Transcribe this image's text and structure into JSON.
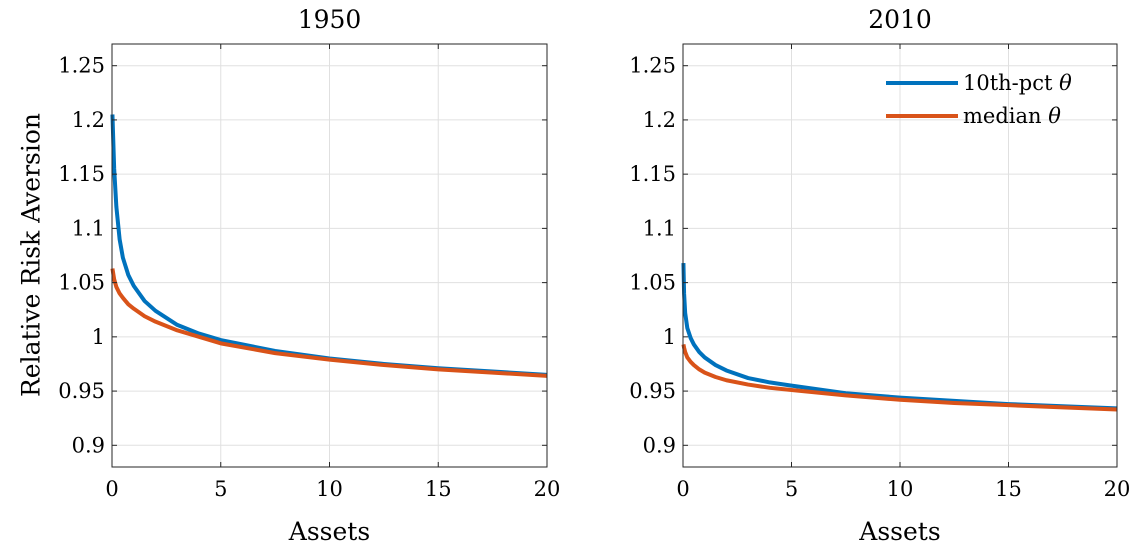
{
  "figure": {
    "ylabel": "Relative Risk Aversion"
  },
  "colors": {
    "series_1": "#0072BD",
    "series_2": "#D95319",
    "grid": "#e0e0e0",
    "axis": "#262626"
  },
  "legend": {
    "entries": [
      {
        "label": "10th-pct",
        "symbol": "θ"
      },
      {
        "label": "median",
        "symbol": "θ"
      }
    ]
  },
  "chart_data": [
    {
      "type": "line",
      "title": "1950",
      "xlabel": "Assets",
      "ylabel": "Relative Risk Aversion",
      "xlim": [
        0,
        20
      ],
      "ylim": [
        0.88,
        1.27
      ],
      "xticks": [
        0,
        5,
        10,
        15,
        20
      ],
      "yticks": [
        0.9,
        0.95,
        1,
        1.05,
        1.1,
        1.15,
        1.2,
        1.25
      ],
      "xtick_labels": [
        "0",
        "5",
        "10",
        "15",
        "20"
      ],
      "ytick_labels": [
        "0.9",
        "0.95",
        "1",
        "1.05",
        "1.1",
        "1.15",
        "1.2",
        "1.25"
      ],
      "grid": true,
      "legend": "none",
      "series": [
        {
          "name": "10th-pct θ",
          "x": [
            0.02,
            0.1,
            0.2,
            0.35,
            0.5,
            0.75,
            1,
            1.5,
            2,
            3,
            4,
            5,
            7.5,
            10,
            12.5,
            15,
            17.5,
            20
          ],
          "y": [
            1.205,
            1.155,
            1.12,
            1.09,
            1.073,
            1.057,
            1.047,
            1.033,
            1.024,
            1.011,
            1.003,
            0.997,
            0.987,
            0.98,
            0.975,
            0.971,
            0.968,
            0.965
          ]
        },
        {
          "name": "median θ",
          "x": [
            0.02,
            0.1,
            0.2,
            0.35,
            0.5,
            0.75,
            1,
            1.5,
            2,
            3,
            4,
            5,
            7.5,
            10,
            12.5,
            15,
            17.5,
            20
          ],
          "y": [
            1.063,
            1.053,
            1.046,
            1.04,
            1.036,
            1.03,
            1.026,
            1.019,
            1.014,
            1.006,
            1.0,
            0.994,
            0.985,
            0.979,
            0.974,
            0.97,
            0.967,
            0.964
          ]
        }
      ]
    },
    {
      "type": "line",
      "title": "2010",
      "xlabel": "Assets",
      "ylabel": "",
      "xlim": [
        0,
        20
      ],
      "ylim": [
        0.88,
        1.27
      ],
      "xticks": [
        0,
        5,
        10,
        15,
        20
      ],
      "yticks": [
        0.9,
        0.95,
        1,
        1.05,
        1.1,
        1.15,
        1.2,
        1.25
      ],
      "xtick_labels": [
        "0",
        "5",
        "10",
        "15",
        "20"
      ],
      "ytick_labels": [
        "0.9",
        "0.95",
        "1",
        "1.05",
        "1.1",
        "1.15",
        "1.2",
        "1.25"
      ],
      "grid": true,
      "legend": "top-right",
      "series": [
        {
          "name": "10th-pct θ",
          "x": [
            0.02,
            0.05,
            0.1,
            0.2,
            0.35,
            0.5,
            0.75,
            1,
            1.5,
            2,
            3,
            4,
            5,
            7.5,
            10,
            12.5,
            15,
            17.5,
            20
          ],
          "y": [
            1.068,
            1.04,
            1.022,
            1.008,
            0.999,
            0.993,
            0.986,
            0.981,
            0.974,
            0.969,
            0.962,
            0.958,
            0.955,
            0.948,
            0.944,
            0.941,
            0.938,
            0.936,
            0.934
          ]
        },
        {
          "name": "median θ",
          "x": [
            0.02,
            0.05,
            0.1,
            0.2,
            0.35,
            0.5,
            0.75,
            1,
            1.5,
            2,
            3,
            4,
            5,
            7.5,
            10,
            12.5,
            15,
            17.5,
            20
          ],
          "y": [
            0.993,
            0.99,
            0.986,
            0.981,
            0.977,
            0.974,
            0.97,
            0.967,
            0.963,
            0.96,
            0.956,
            0.953,
            0.951,
            0.946,
            0.942,
            0.939,
            0.937,
            0.935,
            0.933
          ]
        }
      ]
    }
  ]
}
